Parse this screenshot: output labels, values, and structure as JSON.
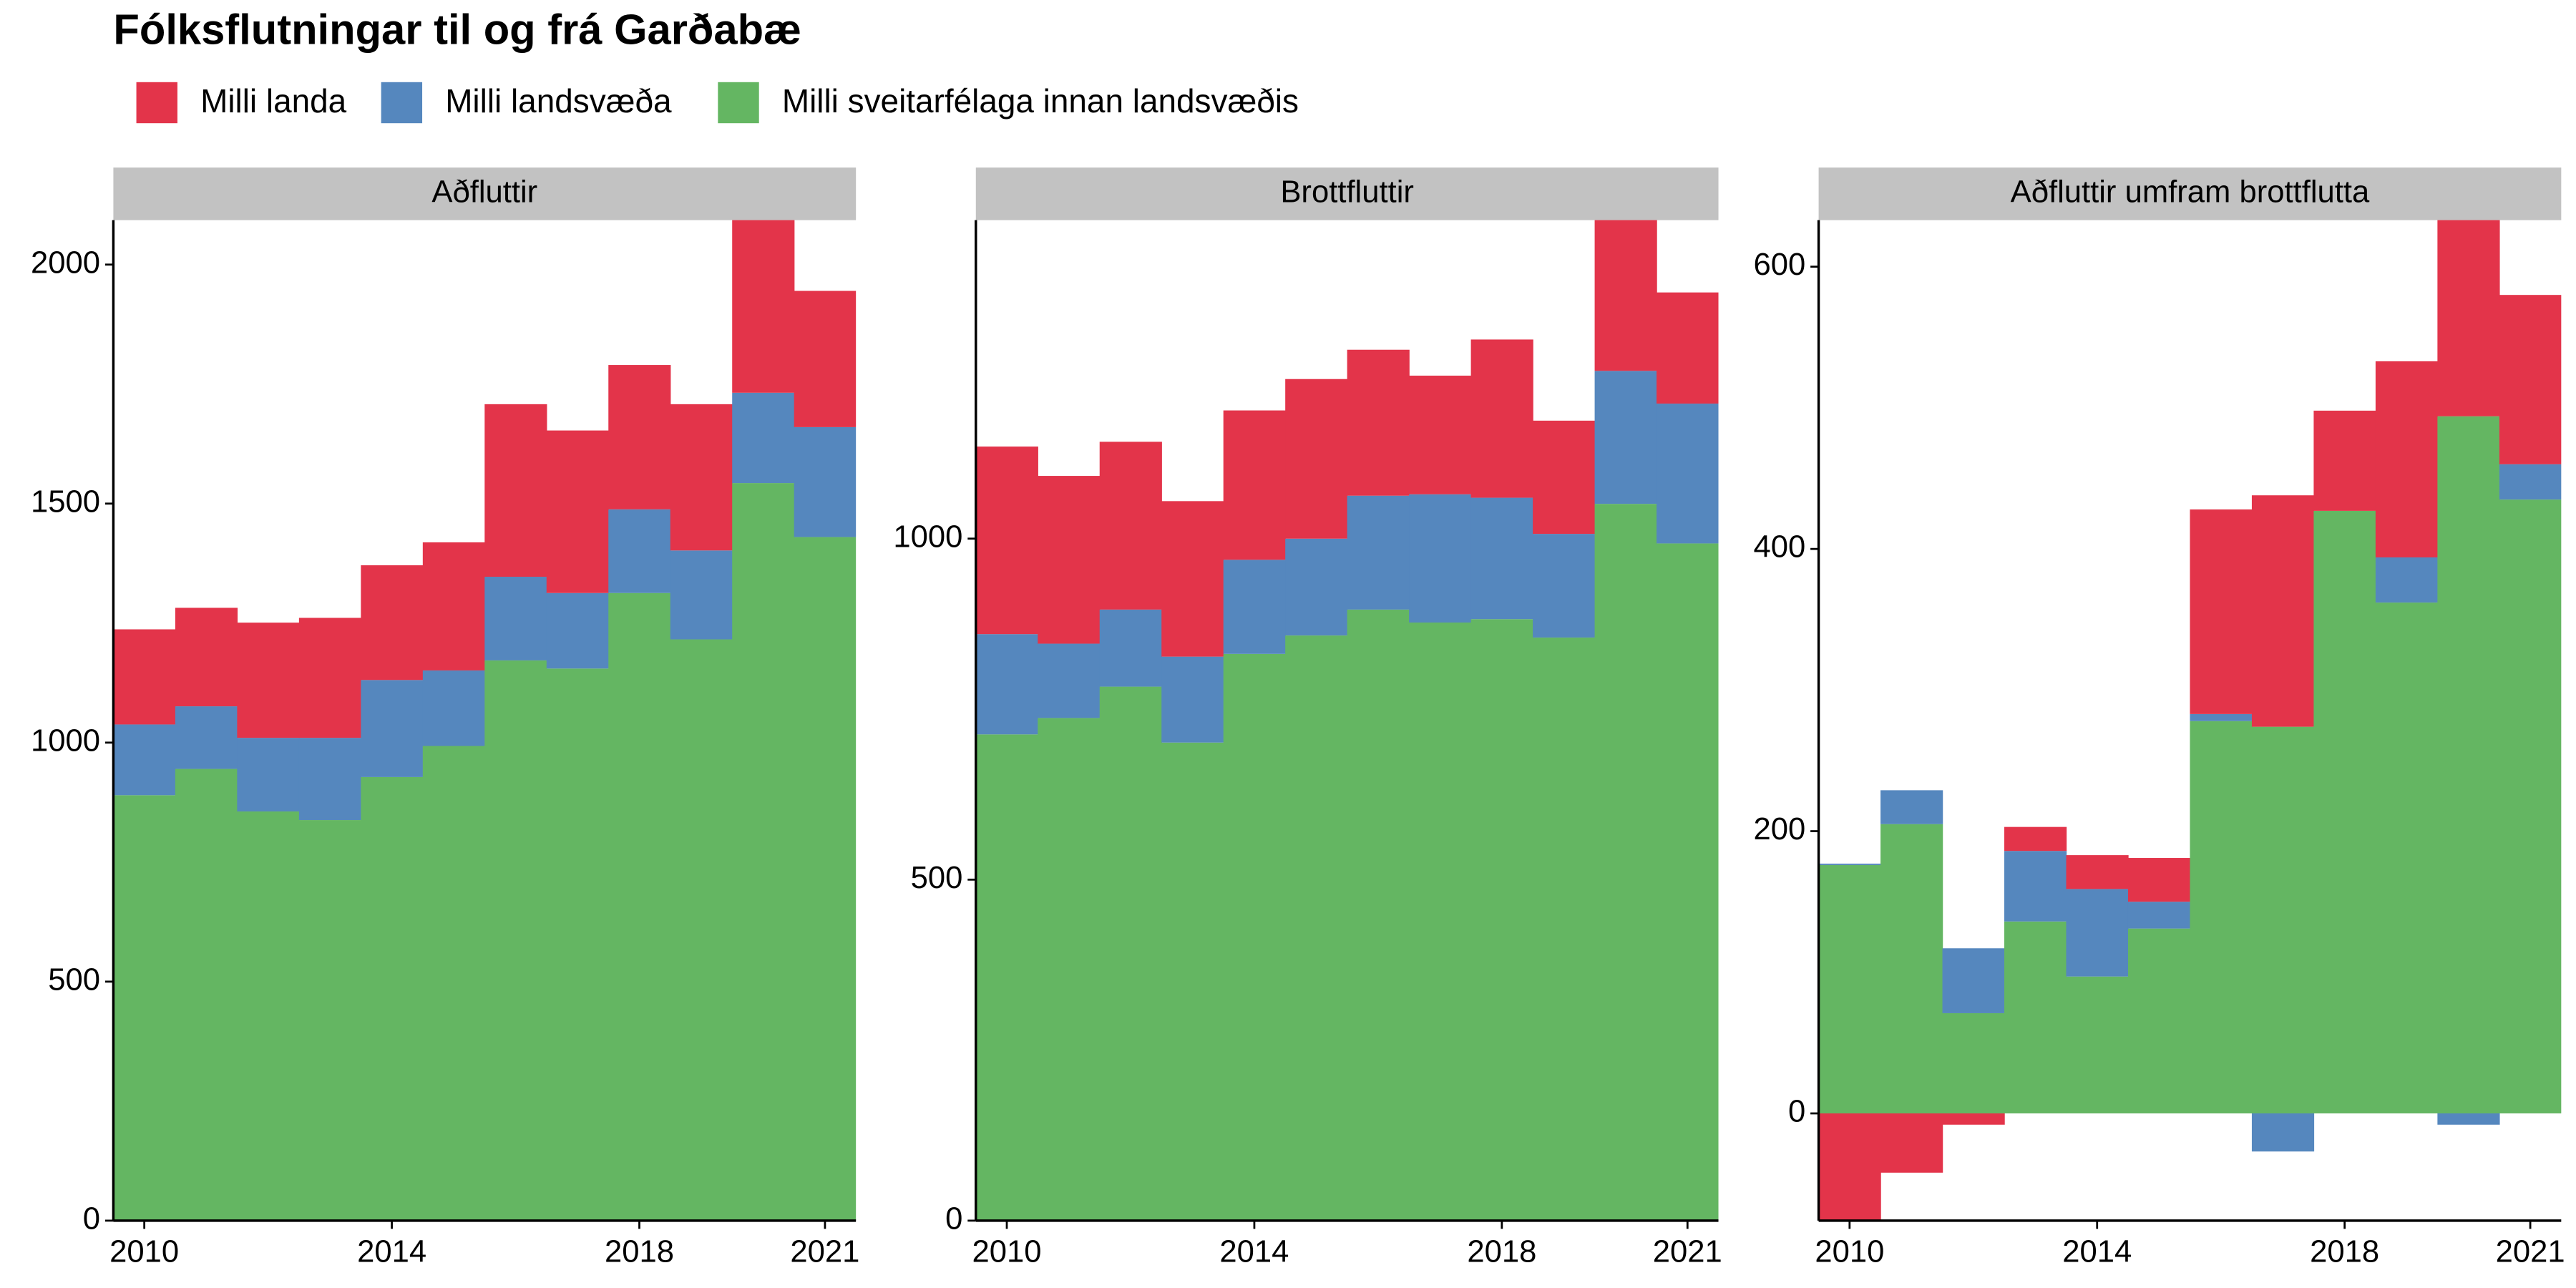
{
  "title": "Fólksflutningar til og frá Garðabæ",
  "chart_data": [
    {
      "type": "bar",
      "stacked": true,
      "title": "Aðfluttir",
      "x": [
        2010,
        2011,
        2012,
        2013,
        2014,
        2015,
        2016,
        2017,
        2018,
        2019,
        2020,
        2021
      ],
      "xlim": [
        2009.5,
        2021.5
      ],
      "xticks": [
        2010,
        2014,
        2018,
        2021
      ],
      "ylim": [
        0,
        2093
      ],
      "yticks": [
        0,
        500,
        1000,
        1500,
        2000
      ],
      "series": [
        {
          "name": "Milli sveitarfélaga innan landsvæðis",
          "color": "#64b662",
          "values": [
            890,
            945,
            856,
            838,
            928,
            993,
            1172,
            1155,
            1313,
            1216,
            1543,
            1430
          ]
        },
        {
          "name": "Milli landsvæða",
          "color": "#5587be",
          "values": [
            148,
            131,
            154,
            172,
            203,
            158,
            175,
            158,
            175,
            186,
            189,
            230
          ]
        },
        {
          "name": "Milli landa",
          "color": "#e3344a",
          "values": [
            199,
            206,
            241,
            251,
            240,
            268,
            361,
            340,
            302,
            306,
            368,
            285
          ]
        }
      ]
    },
    {
      "type": "bar",
      "stacked": true,
      "title": "Brottfluttir",
      "x": [
        2010,
        2011,
        2012,
        2013,
        2014,
        2015,
        2016,
        2017,
        2018,
        2019,
        2020,
        2021
      ],
      "xlim": [
        2009.5,
        2021.5
      ],
      "xticks": [
        2010,
        2014,
        2018,
        2021
      ],
      "ylim": [
        0,
        1467
      ],
      "yticks": [
        0,
        500,
        1000
      ],
      "series": [
        {
          "name": "Milli sveitarfélaga innan landsvæðis",
          "color": "#64b662",
          "values": [
            713,
            737,
            783,
            701,
            831,
            858,
            896,
            877,
            882,
            855,
            1051,
            993
          ]
        },
        {
          "name": "Milli landsvæða",
          "color": "#5587be",
          "values": [
            147,
            109,
            113,
            126,
            138,
            142,
            167,
            188,
            178,
            152,
            195,
            205
          ]
        },
        {
          "name": "Milli landa",
          "color": "#e3344a",
          "values": [
            275,
            246,
            246,
            228,
            219,
            234,
            214,
            174,
            232,
            166,
            224,
            163
          ]
        }
      ]
    },
    {
      "type": "bar",
      "stacked": true,
      "title": "Aðfluttir umfram brottflutta",
      "x": [
        2010,
        2011,
        2012,
        2013,
        2014,
        2015,
        2016,
        2017,
        2018,
        2019,
        2020,
        2021
      ],
      "xlim": [
        2009.5,
        2021.5
      ],
      "xticks": [
        2010,
        2014,
        2018,
        2021
      ],
      "ylim": [
        -76,
        633
      ],
      "yticks": [
        0,
        200,
        400,
        600
      ],
      "series": [
        {
          "name": "Milli sveitarfélaga innan landsvæðis",
          "color": "#64b662",
          "values": [
            176,
            205,
            71,
            136,
            97,
            131,
            278,
            274,
            427,
            362,
            494,
            435
          ]
        },
        {
          "name": "Milli landsvæða",
          "color": "#5587be",
          "values": [
            1,
            24,
            46,
            50,
            62,
            19,
            5,
            -27,
            0,
            32,
            -8,
            25
          ]
        },
        {
          "name": "Milli landa",
          "color": "#e3344a",
          "values": [
            -80,
            -42,
            -8,
            17,
            24,
            31,
            145,
            164,
            71,
            139,
            145,
            120
          ]
        }
      ]
    }
  ]
}
